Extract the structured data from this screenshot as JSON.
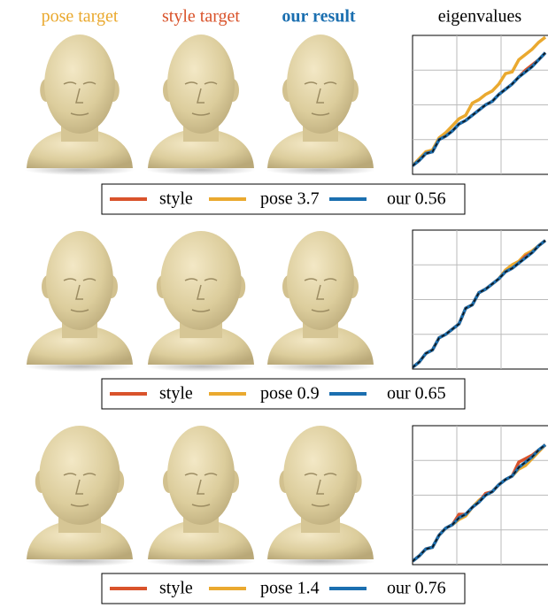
{
  "header": {
    "columns": [
      {
        "text": "pose target",
        "color": "#eaa92f"
      },
      {
        "text": "style target",
        "color": "#d9532b"
      },
      {
        "text": "our result",
        "color": "#1b6fb0"
      },
      {
        "text": "eigenvalues",
        "color": "#000000"
      }
    ]
  },
  "chart_data": [
    {
      "type": "line",
      "x": [
        0,
        0.15,
        0.3,
        0.45,
        0.6,
        0.75,
        0.9,
        1.05,
        1.2,
        1.35,
        1.5,
        1.65,
        1.8,
        1.95,
        2.1,
        2.25,
        2.4,
        2.55,
        2.7,
        2.85,
        3
      ],
      "xlim": [
        0,
        3
      ],
      "xticks": [
        1,
        2
      ],
      "ylim": [
        0,
        4
      ],
      "yticks": [
        1,
        2,
        3
      ],
      "grid": true,
      "series": [
        {
          "name": "style",
          "color": "#d9532b",
          "values": [
            0.25,
            0.4,
            0.6,
            0.65,
            1.0,
            1.1,
            1.25,
            1.45,
            1.55,
            1.7,
            1.85,
            2.0,
            2.1,
            2.3,
            2.45,
            2.6,
            2.8,
            3.0,
            3.15,
            3.3,
            3.5
          ]
        },
        {
          "name": "pose 3.7",
          "color": "#eaa92f",
          "values": [
            0.25,
            0.45,
            0.65,
            0.7,
            1.05,
            1.2,
            1.4,
            1.6,
            1.7,
            2.05,
            2.15,
            2.3,
            2.4,
            2.6,
            2.9,
            2.95,
            3.3,
            3.45,
            3.6,
            3.8,
            3.95
          ]
        },
        {
          "name": "our 0.56",
          "color": "#1b6fb0",
          "values": [
            0.25,
            0.4,
            0.6,
            0.65,
            1.0,
            1.1,
            1.25,
            1.45,
            1.55,
            1.7,
            1.85,
            2.0,
            2.1,
            2.3,
            2.45,
            2.6,
            2.8,
            2.95,
            3.1,
            3.3,
            3.5
          ]
        }
      ]
    },
    {
      "type": "line",
      "x": [
        0,
        0.15,
        0.3,
        0.45,
        0.6,
        0.75,
        0.9,
        1.05,
        1.2,
        1.35,
        1.5,
        1.65,
        1.8,
        1.95,
        2.1,
        2.25,
        2.4,
        2.55,
        2.7,
        2.85,
        3
      ],
      "xlim": [
        0,
        3
      ],
      "xticks": [
        1,
        2
      ],
      "ylim": [
        0,
        4
      ],
      "yticks": [
        1,
        2,
        3
      ],
      "grid": true,
      "series": [
        {
          "name": "style",
          "color": "#d9532b",
          "values": [
            0.05,
            0.2,
            0.45,
            0.55,
            0.9,
            1.0,
            1.15,
            1.3,
            1.75,
            1.85,
            2.2,
            2.3,
            2.45,
            2.6,
            2.8,
            2.9,
            3.05,
            3.25,
            3.35,
            3.55,
            3.7
          ]
        },
        {
          "name": "pose 0.9",
          "color": "#eaa92f",
          "values": [
            0.05,
            0.2,
            0.45,
            0.55,
            0.9,
            1.0,
            1.15,
            1.3,
            1.75,
            1.85,
            2.2,
            2.3,
            2.45,
            2.6,
            2.85,
            3.0,
            3.1,
            3.3,
            3.4,
            3.55,
            3.7
          ]
        },
        {
          "name": "our 0.65",
          "color": "#1b6fb0",
          "values": [
            0.05,
            0.2,
            0.45,
            0.55,
            0.9,
            1.0,
            1.15,
            1.3,
            1.75,
            1.85,
            2.2,
            2.3,
            2.45,
            2.6,
            2.8,
            2.9,
            3.05,
            3.2,
            3.35,
            3.55,
            3.7
          ]
        }
      ]
    },
    {
      "type": "line",
      "x": [
        0,
        0.15,
        0.3,
        0.45,
        0.6,
        0.75,
        0.9,
        1.05,
        1.2,
        1.35,
        1.5,
        1.65,
        1.8,
        1.95,
        2.1,
        2.25,
        2.4,
        2.55,
        2.7,
        2.85,
        3
      ],
      "xlim": [
        0,
        3
      ],
      "xticks": [
        1,
        2
      ],
      "ylim": [
        0,
        4
      ],
      "yticks": [
        1,
        2,
        3
      ],
      "grid": true,
      "series": [
        {
          "name": "style",
          "color": "#d9532b",
          "values": [
            0.1,
            0.25,
            0.45,
            0.5,
            0.85,
            1.05,
            1.15,
            1.45,
            1.45,
            1.65,
            1.8,
            2.05,
            2.1,
            2.3,
            2.45,
            2.55,
            2.95,
            3.05,
            3.15,
            3.3,
            3.45
          ]
        },
        {
          "name": "pose 1.4",
          "color": "#eaa92f",
          "values": [
            0.1,
            0.25,
            0.45,
            0.5,
            0.85,
            1.05,
            1.15,
            1.3,
            1.4,
            1.65,
            1.85,
            2.0,
            2.1,
            2.3,
            2.45,
            2.55,
            2.75,
            2.85,
            3.05,
            3.25,
            3.45
          ]
        },
        {
          "name": "our 0.76",
          "color": "#1b6fb0",
          "values": [
            0.1,
            0.25,
            0.45,
            0.5,
            0.85,
            1.05,
            1.15,
            1.35,
            1.45,
            1.65,
            1.8,
            2.0,
            2.1,
            2.3,
            2.45,
            2.55,
            2.8,
            2.95,
            3.1,
            3.3,
            3.45
          ]
        }
      ]
    }
  ]
}
